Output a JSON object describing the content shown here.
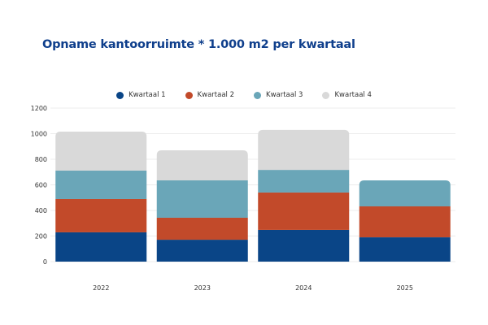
{
  "title": "Opname kantoorruimte * 1.000 m2 per kwartaal",
  "chart_data": {
    "type": "bar",
    "stacked": true,
    "title": "Opname kantoorruimte * 1.000 m2 per kwartaal",
    "xlabel": "",
    "ylabel": "",
    "categories": [
      "2022",
      "2023",
      "2024",
      "2025"
    ],
    "series": [
      {
        "name": "Kwartaal 1",
        "color": "#0a4587",
        "values": [
          229,
          171,
          248,
          190
        ]
      },
      {
        "name": "Kwartaal 2",
        "color": "#c24a2a",
        "values": [
          260,
          172,
          292,
          242
        ]
      },
      {
        "name": "Kwartaal 3",
        "color": "#6aa6b8",
        "values": [
          222,
          292,
          177,
          203
        ]
      },
      {
        "name": "Kwartaal 4",
        "color": "#d9d9d9",
        "values": [
          305,
          235,
          312,
          null
        ]
      }
    ],
    "ylim": [
      0,
      1200
    ],
    "yticks": [
      "0",
      "200",
      "400",
      "600",
      "800",
      "1000",
      "1200"
    ],
    "grid": true,
    "legend": "top-center"
  }
}
